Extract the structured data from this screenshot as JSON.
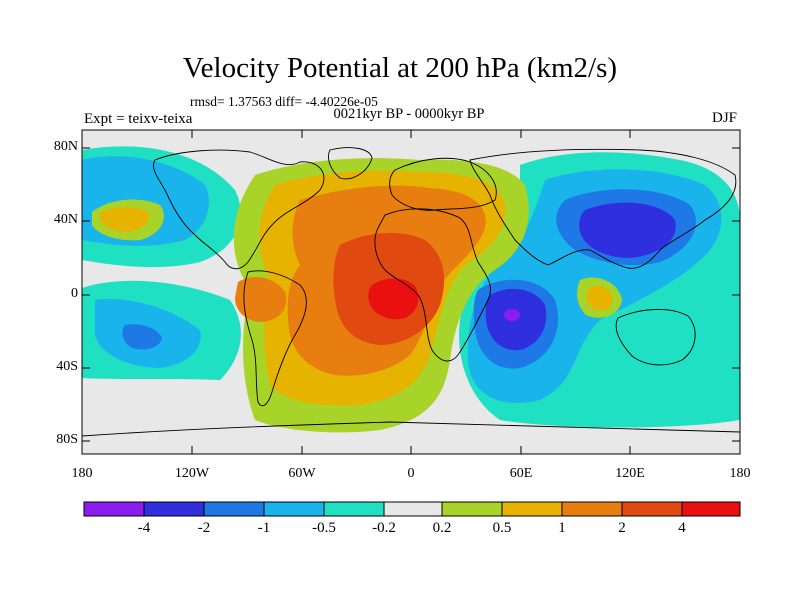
{
  "title": "Velocity Potential at 200 hPa (km2/s)",
  "stats_text": "rmsd= 1.37563 diff= -4.40226e-05",
  "period_text": "0021kyr BP - 0000kyr BP",
  "experiment_text": "Expt = teixv-teixa",
  "season_text": "DJF",
  "lat_labels": [
    "80N",
    "40N",
    "0",
    "40S",
    "80S"
  ],
  "lon_labels": [
    "180",
    "120W",
    "60W",
    "0",
    "60E",
    "120E",
    "180"
  ],
  "colorbar": {
    "labels": [
      "-4",
      "-2",
      "-1",
      "-0.5",
      "-0.2",
      "0.2",
      "0.5",
      "1",
      "2",
      "4"
    ],
    "colors": [
      "#8a1ef0",
      "#2f2fe0",
      "#1e78e6",
      "#19b4ec",
      "#20e0c4",
      "#e8e8e8",
      "#a8d42a",
      "#e6b400",
      "#e87e10",
      "#e04a10",
      "#ea1010"
    ]
  }
}
